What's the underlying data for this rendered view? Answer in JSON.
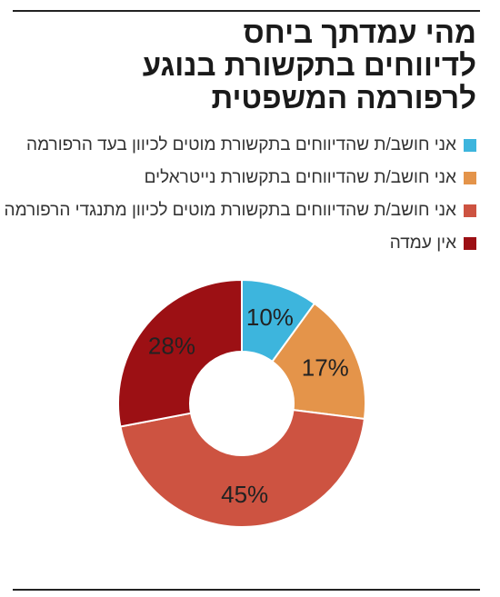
{
  "colors": {
    "blue": "#3DB5DD",
    "orange": "#E4944A",
    "red": "#CD5341",
    "darkred": "#9C1014"
  },
  "chart_data": {
    "type": "pie",
    "title": [
      "מהי עמדתך ביחס",
      "לדיווחים בתקשורת בנוגע",
      "לרפורמה המשפטית"
    ],
    "legend_placement": "top-right",
    "slices": [
      {
        "name": "אני חושב/ת שהדיווחים בתקשורת מוטים לכיוון בעד הרפורמה",
        "value": 10,
        "label": "10%",
        "color": "#3DB5DD"
      },
      {
        "name": "אני חושב/ת שהדיווחים בתקשורת נייטראלים",
        "value": 17,
        "label": "17%",
        "color": "#E4944A"
      },
      {
        "name": "אני חושב/ת שהדיווחים בתקשורת מוטים לכיוון מתנגדי הרפורמה",
        "value": 45,
        "label": "45%",
        "color": "#CD5341"
      },
      {
        "name": "אין עמדה",
        "value": 28,
        "label": "28%",
        "color": "#9C1014"
      }
    ]
  }
}
